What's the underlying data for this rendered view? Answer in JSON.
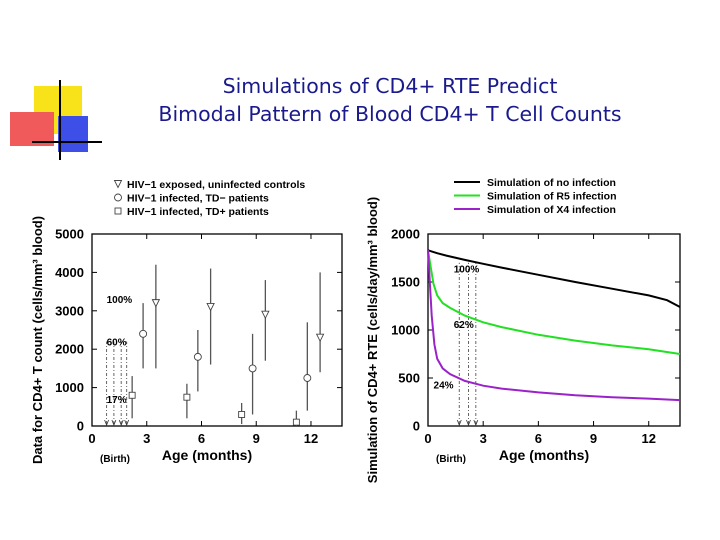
{
  "slide": {
    "title_line1": "Simulations of CD4+ RTE Predict",
    "title_line2": "Bimodal Pattern of Blood CD4+ T Cell Counts"
  },
  "colors": {
    "title": "#1a1a8c",
    "deco_yellow": "#f8e21a",
    "deco_red": "#f05a5a",
    "deco_blue": "#3d4fe6",
    "no_infection": "#000000",
    "r5": "#22e022",
    "x4": "#9a22c8"
  },
  "chart_data": [
    {
      "type": "scatter",
      "xlabel": "Age (months)",
      "ylabel": "Data for CD4+ T count (cells/mm³ blood)",
      "xlim": [
        0,
        13.7
      ],
      "ylim": [
        0,
        5000
      ],
      "x_ticks": [
        0,
        3,
        6,
        9,
        12
      ],
      "y_ticks": [
        0,
        1000,
        2000,
        3000,
        4000,
        5000
      ],
      "x_note": "(Birth)",
      "legend": [
        {
          "marker": "triangle",
          "label": "HIV−1 exposed, uninfected controls"
        },
        {
          "marker": "circle",
          "label": "HIV−1 infected, TD− patients"
        },
        {
          "marker": "square",
          "label": "HIV−1 infected, TD+ patients"
        }
      ],
      "series": [
        {
          "name": "HIV−1 exposed, uninfected controls",
          "marker": "triangle",
          "points": [
            {
              "x": 3.5,
              "y": 3200,
              "lo": 1500,
              "hi": 4200
            },
            {
              "x": 6.5,
              "y": 3100,
              "lo": 1600,
              "hi": 4100
            },
            {
              "x": 9.5,
              "y": 2900,
              "lo": 1700,
              "hi": 3800
            },
            {
              "x": 12.5,
              "y": 2300,
              "lo": 1400,
              "hi": 4000
            }
          ]
        },
        {
          "name": "HIV−1 infected, TD− patients",
          "marker": "circle",
          "points": [
            {
              "x": 2.8,
              "y": 2400,
              "lo": 1500,
              "hi": 3200
            },
            {
              "x": 5.8,
              "y": 1800,
              "lo": 900,
              "hi": 2500
            },
            {
              "x": 8.8,
              "y": 1500,
              "lo": 300,
              "hi": 2400
            },
            {
              "x": 11.8,
              "y": 1250,
              "lo": 400,
              "hi": 2700
            }
          ]
        },
        {
          "name": "HIV−1 infected, TD+ patients",
          "marker": "square",
          "points": [
            {
              "x": 2.2,
              "y": 800,
              "lo": 200,
              "hi": 1300
            },
            {
              "x": 5.2,
              "y": 750,
              "lo": 200,
              "hi": 1100
            },
            {
              "x": 8.2,
              "y": 300,
              "lo": 50,
              "hi": 600
            },
            {
              "x": 11.2,
              "y": 100,
              "lo": 0,
              "hi": 400
            }
          ]
        }
      ],
      "annotations": [
        {
          "text": "100%",
          "x": 0.8,
          "y": 3200
        },
        {
          "text": "60%",
          "x": 0.8,
          "y": 2100
        },
        {
          "text": "17%",
          "x": 0.8,
          "y": 600
        }
      ],
      "markers": [
        {
          "x": 0.8,
          "y": 0
        },
        {
          "x": 1.2,
          "y": 0
        },
        {
          "x": 1.6,
          "y": 0
        },
        {
          "x": 1.9,
          "y": 0
        }
      ]
    },
    {
      "type": "line",
      "xlabel": "Age (months)",
      "ylabel": "Simulation of CD4+ RTE (cells/day/mm³ blood)",
      "xlim": [
        0,
        13.7
      ],
      "ylim": [
        0,
        2000
      ],
      "x_ticks": [
        0,
        3,
        6,
        9,
        12
      ],
      "y_ticks": [
        0,
        500,
        1000,
        1500,
        2000
      ],
      "x_note": "(Birth)",
      "legend": [
        {
          "color_key": "no_infection",
          "label": "Simulation of no infection"
        },
        {
          "color_key": "r5",
          "label": "Simulation of R5 infection"
        },
        {
          "color_key": "x4",
          "label": "Simulation of X4 infection"
        }
      ],
      "series": [
        {
          "name": "Simulation of no infection",
          "color_key": "no_infection",
          "x": [
            0,
            0.5,
            1,
            2,
            3,
            4,
            6,
            8,
            10,
            12,
            13,
            13.7
          ],
          "y": [
            1830,
            1800,
            1775,
            1730,
            1690,
            1650,
            1575,
            1500,
            1430,
            1360,
            1310,
            1240
          ]
        },
        {
          "name": "Simulation of R5 infection",
          "color_key": "r5",
          "x": [
            0,
            0.15,
            0.3,
            0.5,
            0.8,
            1.2,
            2,
            3,
            4,
            6,
            8,
            10,
            12,
            13.7
          ],
          "y": [
            1830,
            1650,
            1480,
            1360,
            1280,
            1230,
            1150,
            1080,
            1030,
            950,
            890,
            840,
            800,
            750
          ]
        },
        {
          "name": "Simulation of X4 infection",
          "color_key": "x4",
          "x": [
            0,
            0.1,
            0.2,
            0.35,
            0.5,
            0.8,
            1.2,
            2,
            3,
            4,
            6,
            8,
            10,
            12,
            13.7
          ],
          "y": [
            1830,
            1500,
            1150,
            850,
            700,
            600,
            540,
            470,
            420,
            390,
            350,
            320,
            300,
            285,
            270
          ]
        }
      ],
      "annotations": [
        {
          "text": "100%",
          "x": 1.4,
          "y": 1600
        },
        {
          "text": "62%",
          "x": 1.4,
          "y": 1020
        },
        {
          "text": "24%",
          "x": 0.3,
          "y": 390
        }
      ],
      "markers": [
        {
          "x": 1.7,
          "y": 0
        },
        {
          "x": 2.2,
          "y": 0
        },
        {
          "x": 2.6,
          "y": 0
        }
      ]
    }
  ]
}
